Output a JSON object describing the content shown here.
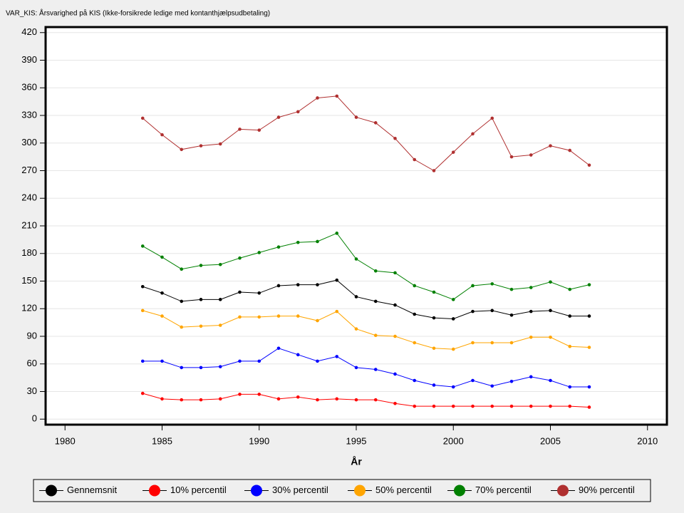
{
  "chart_data": {
    "type": "line",
    "title": "VAR_KIS: Årsvarighed på KIS (Ikke-forsikrede ledige med kontanthjælpsudbetaling)",
    "x_label": "År",
    "x": [
      1984,
      1985,
      1986,
      1987,
      1988,
      1989,
      1990,
      1991,
      1992,
      1993,
      1994,
      1995,
      1996,
      1997,
      1998,
      1999,
      2000,
      2001,
      2002,
      2003,
      2004,
      2005,
      2006,
      2007
    ],
    "series": [
      {
        "name": "Gennemsnit",
        "color": "#000000",
        "values": [
          144,
          137,
          128,
          130,
          130,
          138,
          137,
          145,
          146,
          146,
          151,
          133,
          128,
          124,
          114,
          110,
          109,
          117,
          118,
          113,
          117,
          118,
          112,
          112
        ]
      },
      {
        "name": "10% percentil",
        "color": "#ff0000",
        "values": [
          28,
          22,
          21,
          21,
          22,
          27,
          27,
          22,
          24,
          21,
          22,
          21,
          21,
          17,
          14,
          14,
          14,
          14,
          14,
          14,
          14,
          14,
          14,
          13
        ]
      },
      {
        "name": "30% percentil",
        "color": "#0000ff",
        "values": [
          63,
          63,
          56,
          56,
          57,
          63,
          63,
          77,
          70,
          63,
          68,
          56,
          54,
          49,
          42,
          37,
          35,
          42,
          36,
          41,
          46,
          42,
          35,
          35
        ]
      },
      {
        "name": "50% percentil",
        "color": "#ffa500",
        "values": [
          118,
          112,
          100,
          101,
          102,
          111,
          111,
          112,
          112,
          107,
          117,
          98,
          91,
          90,
          83,
          77,
          76,
          83,
          83,
          83,
          89,
          89,
          79,
          78
        ]
      },
      {
        "name": "70% percentil",
        "color": "#008000",
        "values": [
          188,
          176,
          163,
          167,
          168,
          175,
          181,
          187,
          192,
          193,
          202,
          174,
          161,
          159,
          145,
          138,
          130,
          145,
          147,
          141,
          143,
          149,
          141,
          146
        ]
      },
      {
        "name": "90% percentil",
        "color": "#b03030",
        "values": [
          327,
          309,
          293,
          297,
          299,
          315,
          314,
          328,
          334,
          349,
          351,
          328,
          322,
          305,
          282,
          270,
          290,
          310,
          327,
          285,
          287,
          297,
          292,
          276
        ]
      }
    ],
    "xlim": [
      1979,
      2011
    ],
    "xticks": [
      1980,
      1985,
      1990,
      1995,
      2000,
      2005,
      2010
    ],
    "ylim": [
      -6,
      426
    ],
    "yticks": [
      0,
      30,
      60,
      90,
      120,
      150,
      180,
      210,
      240,
      270,
      300,
      330,
      360,
      390,
      420
    ],
    "grid": true,
    "legend": "bottom"
  }
}
